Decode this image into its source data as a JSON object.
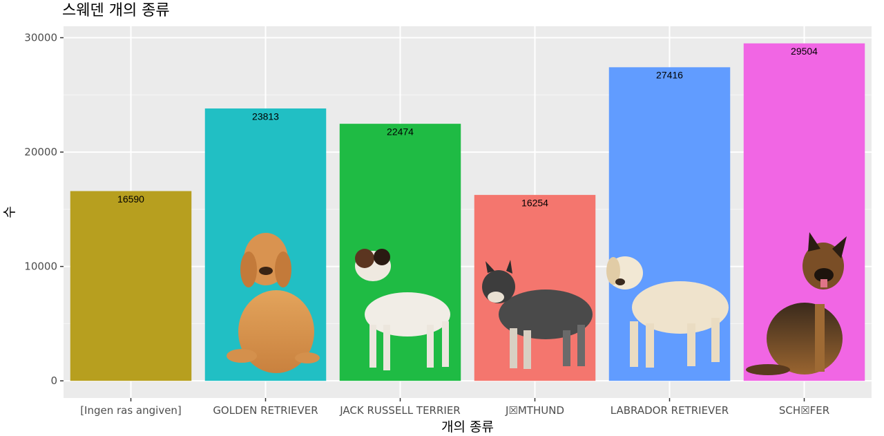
{
  "chart_data": {
    "type": "bar",
    "title": "스웨덴 개의 종류",
    "xlabel": "개의 종류",
    "ylabel": "수",
    "categories": [
      "[Ingen ras angiven]",
      "GOLDEN RETRIEVER",
      "JACK RUSSELL TERRIER",
      "J☒MTHUND",
      "LABRADOR RETRIEVER",
      "SCH☒FER"
    ],
    "values": [
      16590,
      23813,
      22474,
      16254,
      27416,
      29504
    ],
    "colors": [
      "#b79f1f",
      "#21bfc4",
      "#1fbb44",
      "#f4766e",
      "#619cff",
      "#f166e4"
    ],
    "ylim": [
      -1500,
      31000
    ],
    "yticks": [
      0,
      10000,
      20000,
      30000
    ],
    "grid": true,
    "legend": "none",
    "images": [
      "golden-retriever-photo",
      "jack-russell-terrier-photo",
      "jamthund-photo",
      "labrador-retriever-photo",
      "german-shepherd-photo"
    ]
  }
}
